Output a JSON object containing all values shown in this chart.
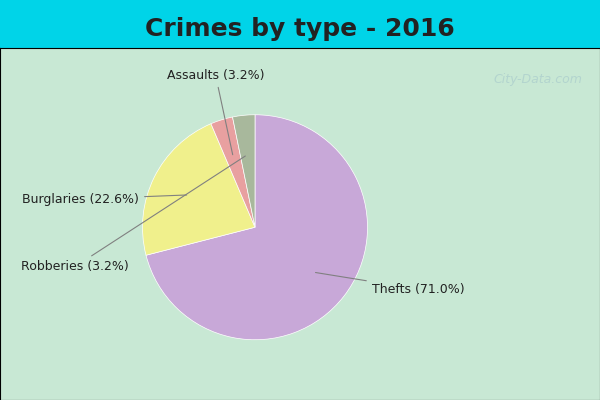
{
  "title": "Crimes by type - 2016",
  "slices": [
    {
      "label": "Thefts",
      "pct": 71.0,
      "color": "#c8a8d8"
    },
    {
      "label": "Burglaries",
      "pct": 22.6,
      "color": "#f0f08c"
    },
    {
      "label": "Assaults",
      "pct": 3.2,
      "color": "#e8a0a0"
    },
    {
      "label": "Robberies",
      "pct": 3.2,
      "color": "#a8b89c"
    }
  ],
  "background_top": "#00d4e8",
  "background_main": "#c8e8d4",
  "title_fontsize": 18,
  "label_fontsize": 9,
  "watermark": "City-Data.com"
}
